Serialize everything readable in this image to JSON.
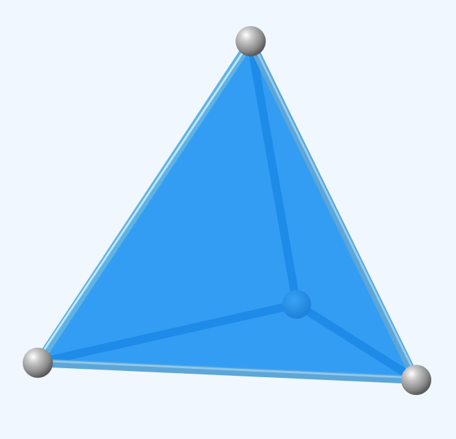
{
  "figure": {
    "shape": "tetrahedron",
    "view": "3d-render",
    "vertex_count": 4,
    "edge_count": 6,
    "visible_face_count": 3
  },
  "colors": {
    "background": "#f0f7ff",
    "face_fill": "#2f9bf3",
    "edge_front_outer": "#5fb3e3",
    "edge_front_highlight": "#bfe6ff",
    "edge_hidden": "#1f8be8",
    "vertex_sphere": "#8f8f8f"
  }
}
